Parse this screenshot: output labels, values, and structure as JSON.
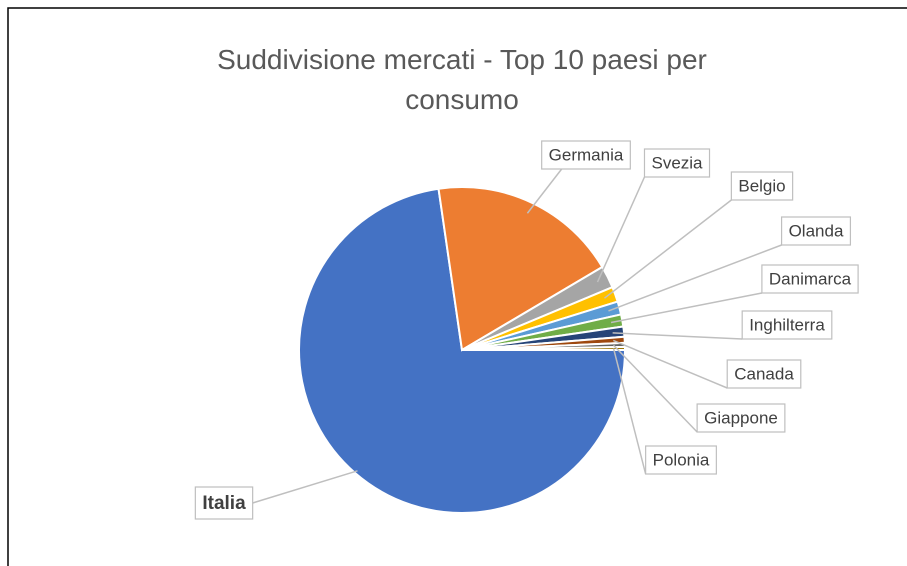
{
  "chart_data": {
    "type": "pie",
    "title": "Suddivisione mercati - Top 10 paesi per consumo",
    "start_angle": 90,
    "categories": [
      "Italia",
      "Germania",
      "Svezia",
      "Belgio",
      "Olanda",
      "Danimarca",
      "Inghilterra",
      "Canada",
      "Giappone",
      "Polonia"
    ],
    "values": [
      72.7,
      18.8,
      2.2,
      1.5,
      1.3,
      1.2,
      1.0,
      0.6,
      0.4,
      0.3
    ],
    "colors": [
      "#4472c4",
      "#ed7d31",
      "#a5a5a5",
      "#ffc000",
      "#5b9bd5",
      "#70ad47",
      "#264478",
      "#9e480e",
      "#636363",
      "#997300"
    ]
  }
}
